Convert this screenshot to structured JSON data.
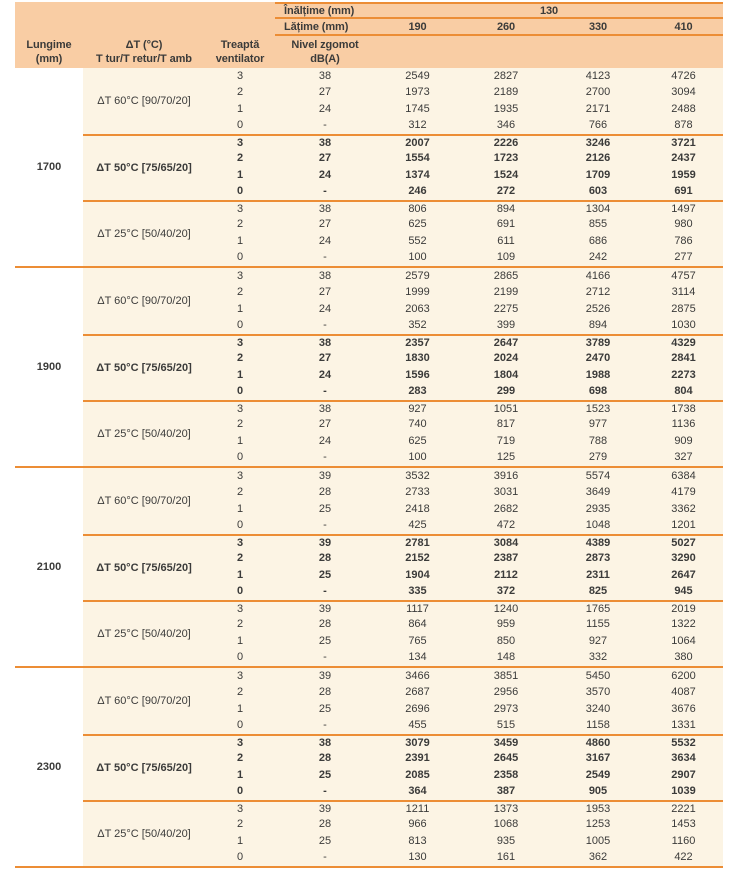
{
  "header": {
    "inaltime": {
      "label": "Înălțime (mm)",
      "value": "130"
    },
    "latime": {
      "label": "Lățime (mm)",
      "columns": [
        "190",
        "260",
        "330",
        "410"
      ]
    },
    "lungime": {
      "line1": "Lungime",
      "line2": "(mm)"
    },
    "delta_t": {
      "line1": "ΔT (°C)",
      "line2": "T tur/T retur/T amb"
    },
    "treapta": {
      "line1": "Treaptă",
      "line2": "ventilator"
    },
    "nivel": {
      "line1": "Nivel zgomot",
      "line2": "dB(A)"
    }
  },
  "groups": [
    {
      "lungime": "1700",
      "sections": [
        {
          "label": "ΔT 60°C [90/70/20]",
          "bold": false,
          "rows": [
            {
              "treapta": "3",
              "nivel": "38",
              "values": [
                "2549",
                "2827",
                "4123",
                "4726"
              ]
            },
            {
              "treapta": "2",
              "nivel": "27",
              "values": [
                "1973",
                "2189",
                "2700",
                "3094"
              ]
            },
            {
              "treapta": "1",
              "nivel": "24",
              "values": [
                "1745",
                "1935",
                "2171",
                "2488"
              ]
            },
            {
              "treapta": "0",
              "nivel": "-",
              "values": [
                "312",
                "346",
                "766",
                "878"
              ]
            }
          ]
        },
        {
          "label": "ΔT 50°C [75/65/20]",
          "bold": true,
          "rows": [
            {
              "treapta": "3",
              "nivel": "38",
              "values": [
                "2007",
                "2226",
                "3246",
                "3721"
              ]
            },
            {
              "treapta": "2",
              "nivel": "27",
              "values": [
                "1554",
                "1723",
                "2126",
                "2437"
              ]
            },
            {
              "treapta": "1",
              "nivel": "24",
              "values": [
                "1374",
                "1524",
                "1709",
                "1959"
              ]
            },
            {
              "treapta": "0",
              "nivel": "-",
              "values": [
                "246",
                "272",
                "603",
                "691"
              ]
            }
          ]
        },
        {
          "label": "ΔT 25°C [50/40/20]",
          "bold": false,
          "rows": [
            {
              "treapta": "3",
              "nivel": "38",
              "values": [
                "806",
                "894",
                "1304",
                "1497"
              ]
            },
            {
              "treapta": "2",
              "nivel": "27",
              "values": [
                "625",
                "691",
                "855",
                "980"
              ]
            },
            {
              "treapta": "1",
              "nivel": "24",
              "values": [
                "552",
                "611",
                "686",
                "786"
              ]
            },
            {
              "treapta": "0",
              "nivel": "-",
              "values": [
                "100",
                "109",
                "242",
                "277"
              ]
            }
          ]
        }
      ]
    },
    {
      "lungime": "1900",
      "sections": [
        {
          "label": "ΔT 60°C [90/70/20]",
          "bold": false,
          "rows": [
            {
              "treapta": "3",
              "nivel": "38",
              "values": [
                "2579",
                "2865",
                "4166",
                "4757"
              ]
            },
            {
              "treapta": "2",
              "nivel": "27",
              "values": [
                "1999",
                "2199",
                "2712",
                "3114"
              ]
            },
            {
              "treapta": "1",
              "nivel": "24",
              "values": [
                "2063",
                "2275",
                "2526",
                "2875"
              ]
            },
            {
              "treapta": "0",
              "nivel": "-",
              "values": [
                "352",
                "399",
                "894",
                "1030"
              ]
            }
          ]
        },
        {
          "label": "ΔT 50°C [75/65/20]",
          "bold": true,
          "rows": [
            {
              "treapta": "3",
              "nivel": "38",
              "values": [
                "2357",
                "2647",
                "3789",
                "4329"
              ]
            },
            {
              "treapta": "2",
              "nivel": "27",
              "values": [
                "1830",
                "2024",
                "2470",
                "2841"
              ]
            },
            {
              "treapta": "1",
              "nivel": "24",
              "values": [
                "1596",
                "1804",
                "1988",
                "2273"
              ]
            },
            {
              "treapta": "0",
              "nivel": "-",
              "values": [
                "283",
                "299",
                "698",
                "804"
              ]
            }
          ]
        },
        {
          "label": "ΔT 25°C [50/40/20]",
          "bold": false,
          "rows": [
            {
              "treapta": "3",
              "nivel": "38",
              "values": [
                "927",
                "1051",
                "1523",
                "1738"
              ]
            },
            {
              "treapta": "2",
              "nivel": "27",
              "values": [
                "740",
                "817",
                "977",
                "1136"
              ]
            },
            {
              "treapta": "1",
              "nivel": "24",
              "values": [
                "625",
                "719",
                "788",
                "909"
              ]
            },
            {
              "treapta": "0",
              "nivel": "-",
              "values": [
                "100",
                "125",
                "279",
                "327"
              ]
            }
          ]
        }
      ]
    },
    {
      "lungime": "2100",
      "sections": [
        {
          "label": "ΔT 60°C [90/70/20]",
          "bold": false,
          "rows": [
            {
              "treapta": "3",
              "nivel": "39",
              "values": [
                "3532",
                "3916",
                "5574",
                "6384"
              ]
            },
            {
              "treapta": "2",
              "nivel": "28",
              "values": [
                "2733",
                "3031",
                "3649",
                "4179"
              ]
            },
            {
              "treapta": "1",
              "nivel": "25",
              "values": [
                "2418",
                "2682",
                "2935",
                "3362"
              ]
            },
            {
              "treapta": "0",
              "nivel": "-",
              "values": [
                "425",
                "472",
                "1048",
                "1201"
              ]
            }
          ]
        },
        {
          "label": "ΔT 50°C [75/65/20]",
          "bold": true,
          "rows": [
            {
              "treapta": "3",
              "nivel": "39",
              "values": [
                "2781",
                "3084",
                "4389",
                "5027"
              ]
            },
            {
              "treapta": "2",
              "nivel": "28",
              "values": [
                "2152",
                "2387",
                "2873",
                "3290"
              ]
            },
            {
              "treapta": "1",
              "nivel": "25",
              "values": [
                "1904",
                "2112",
                "2311",
                "2647"
              ]
            },
            {
              "treapta": "0",
              "nivel": "-",
              "values": [
                "335",
                "372",
                "825",
                "945"
              ]
            }
          ]
        },
        {
          "label": "ΔT 25°C [50/40/20]",
          "bold": false,
          "rows": [
            {
              "treapta": "3",
              "nivel": "39",
              "values": [
                "1117",
                "1240",
                "1765",
                "2019"
              ]
            },
            {
              "treapta": "2",
              "nivel": "28",
              "values": [
                "864",
                "959",
                "1155",
                "1322"
              ]
            },
            {
              "treapta": "1",
              "nivel": "25",
              "values": [
                "765",
                "850",
                "927",
                "1064"
              ]
            },
            {
              "treapta": "0",
              "nivel": "-",
              "values": [
                "134",
                "148",
                "332",
                "380"
              ]
            }
          ]
        }
      ]
    },
    {
      "lungime": "2300",
      "sections": [
        {
          "label": "ΔT 60°C [90/70/20]",
          "bold": false,
          "rows": [
            {
              "treapta": "3",
              "nivel": "39",
              "values": [
                "3466",
                "3851",
                "5450",
                "6200"
              ]
            },
            {
              "treapta": "2",
              "nivel": "28",
              "values": [
                "2687",
                "2956",
                "3570",
                "4087"
              ]
            },
            {
              "treapta": "1",
              "nivel": "25",
              "values": [
                "2696",
                "2973",
                "3240",
                "3676"
              ]
            },
            {
              "treapta": "0",
              "nivel": "-",
              "values": [
                "455",
                "515",
                "1158",
                "1331"
              ]
            }
          ]
        },
        {
          "label": "ΔT 50°C [75/65/20]",
          "bold": true,
          "rows": [
            {
              "treapta": "3",
              "nivel": "38",
              "values": [
                "3079",
                "3459",
                "4860",
                "5532"
              ]
            },
            {
              "treapta": "2",
              "nivel": "28",
              "values": [
                "2391",
                "2645",
                "3167",
                "3634"
              ]
            },
            {
              "treapta": "1",
              "nivel": "25",
              "values": [
                "2085",
                "2358",
                "2549",
                "2907"
              ]
            },
            {
              "treapta": "0",
              "nivel": "-",
              "values": [
                "364",
                "387",
                "905",
                "1039"
              ]
            }
          ]
        },
        {
          "label": "ΔT 25°C [50/40/20]",
          "bold": false,
          "rows": [
            {
              "treapta": "3",
              "nivel": "39",
              "values": [
                "1211",
                "1373",
                "1953",
                "2221"
              ]
            },
            {
              "treapta": "2",
              "nivel": "28",
              "values": [
                "966",
                "1068",
                "1253",
                "1453"
              ]
            },
            {
              "treapta": "1",
              "nivel": "25",
              "values": [
                "813",
                "935",
                "1005",
                "1160"
              ]
            },
            {
              "treapta": "0",
              "nivel": "-",
              "values": [
                "130",
                "161",
                "362",
                "422"
              ]
            }
          ]
        }
      ]
    }
  ],
  "colors": {
    "header_bg": "#f9cda4",
    "row_bg": "#fcf4e4",
    "line": "#ec8d35",
    "text": "#3b3b3a",
    "lungime_bg": "#ffffff"
  }
}
